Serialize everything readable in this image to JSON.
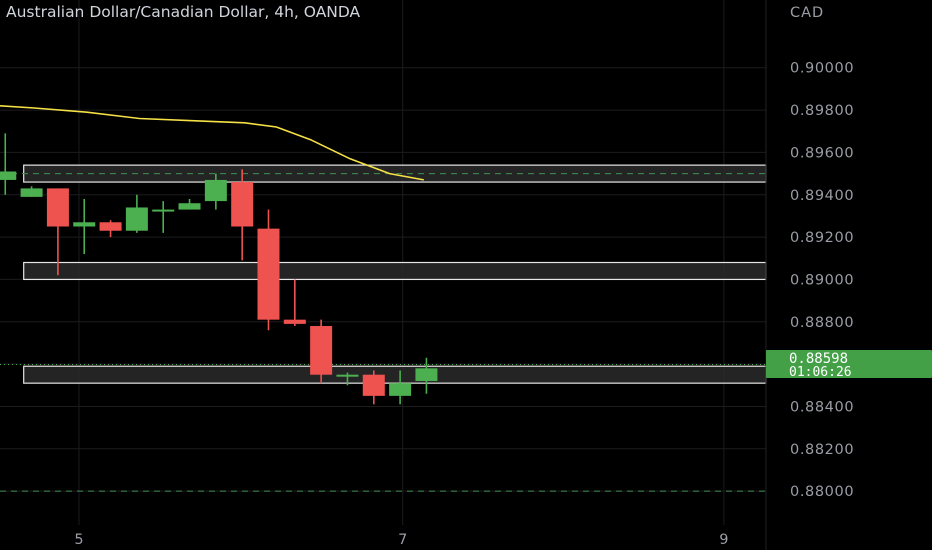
{
  "header": {
    "title": "Australian Dollar/Canadian Dollar, 4h, OANDA"
  },
  "colors": {
    "background": "#000000",
    "grid": "#1c1c1f",
    "bull": "#4caf50",
    "bear": "#ef5350",
    "ma": "#f5e146",
    "zone_fill": "#2a2a2c",
    "zone_border": "#e6e6e6",
    "dashed_level": "#3f8f55",
    "price_badge": "#43a047",
    "axis_text": "#9a9da5"
  },
  "price_badge": {
    "price": "0.88598",
    "countdown": "01:06:26"
  },
  "chart_data": {
    "type": "candlestick",
    "title": "Australian Dollar/Canadian Dollar, 4h, OANDA",
    "y_unit": "CAD",
    "ylim": [
      0.8784,
      0.9032
    ],
    "y_ticks": [
      "0.90000",
      "0.89800",
      "0.89600",
      "0.89400",
      "0.89200",
      "0.89000",
      "0.88800",
      "0.88600",
      "0.88400",
      "0.88200",
      "0.88000"
    ],
    "x_ticks": [
      {
        "label": "5",
        "index": 2.7
      },
      {
        "label": "7",
        "index": 15.0
      },
      {
        "label": "9",
        "index": 27.2
      }
    ],
    "x_range": [
      -0.3,
      28.8
    ],
    "candles": [
      {
        "o": 0.8947,
        "h": 0.8969,
        "l": 0.894,
        "c": 0.8951
      },
      {
        "o": 0.8939,
        "h": 0.8944,
        "l": 0.8939,
        "c": 0.8943
      },
      {
        "o": 0.8943,
        "h": 0.8943,
        "l": 0.8902,
        "c": 0.8925
      },
      {
        "o": 0.8925,
        "h": 0.8938,
        "l": 0.8912,
        "c": 0.8927
      },
      {
        "o": 0.8927,
        "h": 0.8928,
        "l": 0.892,
        "c": 0.8923
      },
      {
        "o": 0.8923,
        "h": 0.894,
        "l": 0.8922,
        "c": 0.8934
      },
      {
        "o": 0.8933,
        "h": 0.8937,
        "l": 0.8922,
        "c": 0.8933
      },
      {
        "o": 0.8933,
        "h": 0.8938,
        "l": 0.8933,
        "c": 0.8936
      },
      {
        "o": 0.8937,
        "h": 0.895,
        "l": 0.8933,
        "c": 0.8947
      },
      {
        "o": 0.8946,
        "h": 0.8952,
        "l": 0.8909,
        "c": 0.8925
      },
      {
        "o": 0.8924,
        "h": 0.8933,
        "l": 0.8876,
        "c": 0.8881
      },
      {
        "o": 0.8881,
        "h": 0.89,
        "l": 0.8878,
        "c": 0.8879
      },
      {
        "o": 0.8878,
        "h": 0.8881,
        "l": 0.8851,
        "c": 0.8855
      },
      {
        "o": 0.8855,
        "h": 0.8856,
        "l": 0.885,
        "c": 0.8855
      },
      {
        "o": 0.8855,
        "h": 0.8857,
        "l": 0.8841,
        "c": 0.8845
      },
      {
        "o": 0.8845,
        "h": 0.8857,
        "l": 0.8841,
        "c": 0.8851
      },
      {
        "o": 0.8852,
        "h": 0.8863,
        "l": 0.8846,
        "c": 0.8858
      }
    ],
    "candle_x_start": -0.1,
    "candle_spacing": 1.0,
    "moving_average": [
      {
        "x": -0.3,
        "y": 0.8982
      },
      {
        "x": 1.0,
        "y": 0.8981
      },
      {
        "x": 3.0,
        "y": 0.8979
      },
      {
        "x": 5.0,
        "y": 0.8976
      },
      {
        "x": 7.0,
        "y": 0.8975
      },
      {
        "x": 9.0,
        "y": 0.8974
      },
      {
        "x": 10.2,
        "y": 0.8972
      },
      {
        "x": 11.5,
        "y": 0.8966
      },
      {
        "x": 13.0,
        "y": 0.8957
      },
      {
        "x": 14.5,
        "y": 0.895
      },
      {
        "x": 15.8,
        "y": 0.8947
      }
    ],
    "zones": [
      {
        "top": 0.8954,
        "bottom": 0.8946,
        "x_start": 0.6,
        "with_dashed_mid": true,
        "mid": 0.895
      },
      {
        "top": 0.8908,
        "bottom": 0.89,
        "x_start": 0.6,
        "with_dashed_mid": false
      },
      {
        "top": 0.8859,
        "bottom": 0.8851,
        "x_start": 0.6,
        "with_dashed_mid": false
      }
    ],
    "dashed_levels": [
      0.88
    ],
    "current_price_line": 0.88598
  }
}
